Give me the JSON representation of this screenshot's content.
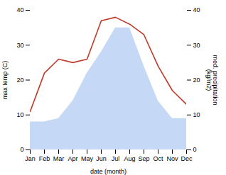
{
  "chart_data": {
    "type": "line",
    "xlabel": "date (month)",
    "ylabel": "max temp (C)",
    "y2label": "med. precipitation\n(kg/m2)",
    "categories": [
      "Jan",
      "Feb",
      "Mar",
      "Apr",
      "May",
      "Jun",
      "Jul",
      "Aug",
      "Sep",
      "Oct",
      "Nov",
      "Dec"
    ],
    "series": [
      {
        "type": "area",
        "axis": "y2",
        "color": "#c5d8f5",
        "values": [
          8,
          8,
          9,
          14,
          22,
          28,
          35,
          35,
          24,
          14,
          9,
          9
        ]
      },
      {
        "type": "line",
        "color": "#c0392b",
        "values": [
          11,
          22,
          26,
          25,
          26,
          37,
          38,
          36,
          33,
          24,
          17,
          13
        ]
      }
    ],
    "ylim": [
      0,
      40
    ],
    "yticks": [
      0,
      10,
      20,
      30,
      40
    ],
    "y2lim": [
      0,
      40
    ],
    "y2ticks": [
      0,
      10,
      20,
      30,
      40
    ]
  }
}
